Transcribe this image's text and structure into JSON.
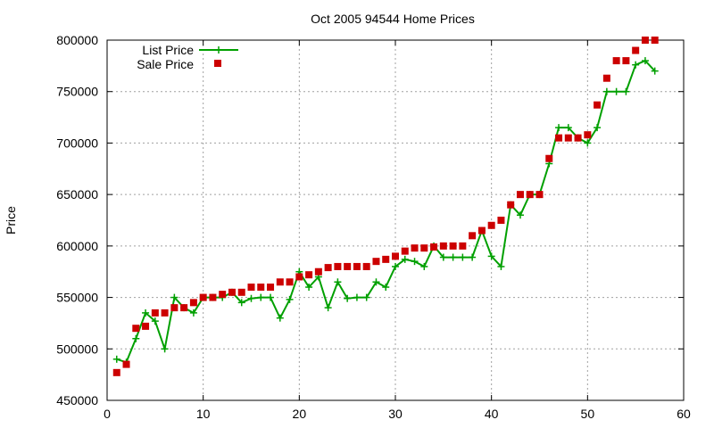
{
  "chart_data": {
    "type": "line",
    "title": "Oct 2005 94544 Home Prices",
    "xlabel": "",
    "ylabel": "Price",
    "xlim": [
      0,
      60
    ],
    "ylim": [
      450000,
      800000
    ],
    "x_ticks": [
      "0",
      "10",
      "20",
      "30",
      "40",
      "50",
      "60"
    ],
    "y_ticks": [
      "450000",
      "500000",
      "550000",
      "600000",
      "650000",
      "700000",
      "750000",
      "800000"
    ],
    "grid": true,
    "legend_position": "top-left",
    "colors": {
      "list": "#00a000",
      "sale": "#cc0000"
    },
    "series": [
      {
        "name": "List Price",
        "style": "line-with-plus-markers",
        "x": [
          1,
          2,
          3,
          4,
          5,
          6,
          7,
          8,
          9,
          10,
          11,
          12,
          13,
          14,
          15,
          16,
          17,
          18,
          19,
          20,
          21,
          22,
          23,
          24,
          25,
          26,
          27,
          28,
          29,
          30,
          31,
          32,
          33,
          34,
          35,
          36,
          37,
          38,
          39,
          40,
          41,
          42,
          43,
          44,
          45,
          46,
          47,
          48,
          49,
          50,
          51,
          52,
          53,
          54,
          55,
          56,
          57
        ],
        "y": [
          490000,
          487000,
          510000,
          535000,
          527000,
          500000,
          550000,
          540000,
          535000,
          550000,
          550000,
          550000,
          555000,
          545000,
          549000,
          550000,
          550000,
          530000,
          548000,
          575000,
          560000,
          570000,
          540000,
          565000,
          549000,
          550000,
          550000,
          565000,
          560000,
          580000,
          587000,
          585000,
          580000,
          600000,
          589000,
          589000,
          589000,
          589000,
          615000,
          590000,
          580000,
          640000,
          630000,
          650000,
          650000,
          680000,
          715000,
          715000,
          705000,
          700000,
          715000,
          750000,
          750000,
          750000,
          776000,
          780000,
          770000
        ]
      },
      {
        "name": "Sale Price",
        "style": "square-markers",
        "x": [
          1,
          2,
          3,
          4,
          5,
          6,
          7,
          8,
          9,
          10,
          11,
          12,
          13,
          14,
          15,
          16,
          17,
          18,
          19,
          20,
          21,
          22,
          23,
          24,
          25,
          26,
          27,
          28,
          29,
          30,
          31,
          32,
          33,
          34,
          35,
          36,
          37,
          38,
          39,
          40,
          41,
          42,
          43,
          44,
          45,
          46,
          47,
          48,
          49,
          50,
          51,
          52,
          53,
          54,
          55,
          56,
          57
        ],
        "y": [
          477000,
          485000,
          520000,
          522000,
          535000,
          535000,
          540000,
          540000,
          545000,
          550000,
          550000,
          553000,
          555000,
          555000,
          560000,
          560000,
          560000,
          565000,
          565000,
          570000,
          572000,
          575000,
          579000,
          580000,
          580000,
          580000,
          580000,
          585000,
          587000,
          590000,
          595000,
          598000,
          598000,
          599000,
          600000,
          600000,
          600000,
          610000,
          615000,
          620000,
          625000,
          640000,
          650000,
          650000,
          650000,
          685000,
          705000,
          705000,
          705000,
          708000,
          737000,
          763000,
          780000,
          780000,
          790000,
          800000,
          800000
        ]
      }
    ]
  }
}
